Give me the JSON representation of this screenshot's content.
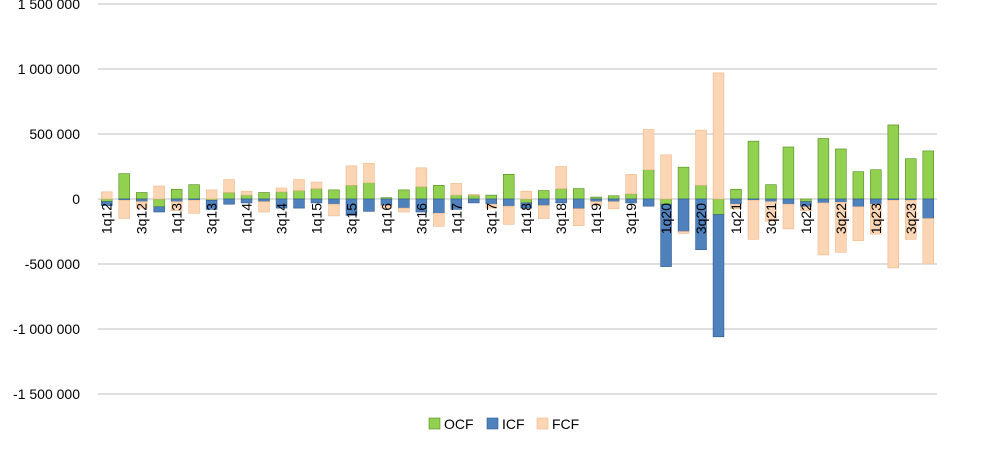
{
  "chart_data": {
    "type": "bar",
    "stacked": true,
    "title": "",
    "xlabel": "",
    "ylabel": "",
    "ylim": [
      -1500000,
      1500000
    ],
    "yticks": [
      1500000,
      1000000,
      500000,
      0,
      -500000,
      -1000000,
      -1500000
    ],
    "ytick_labels": [
      "1 500 000",
      "1 000 000",
      "500 000",
      "0",
      "-500 000",
      "-1 000 000",
      "-1 500 000"
    ],
    "grid": true,
    "legend_position": "bottom",
    "categories": [
      "1q12",
      "2q12",
      "3q12",
      "4q12",
      "1q13",
      "2q13",
      "3q13",
      "4q13",
      "1q14",
      "2q14",
      "3q14",
      "4q14",
      "1q15",
      "2q15",
      "3q15",
      "4q15",
      "1q16",
      "2q16",
      "3q16",
      "4q16",
      "1q17",
      "2q17",
      "3q17",
      "4q17",
      "1q18",
      "2q18",
      "3q18",
      "4q18",
      "1q19",
      "2q19",
      "3q19",
      "4q19",
      "1q20",
      "2q20",
      "3q20",
      "4q20",
      "1q21",
      "2q21",
      "3q21",
      "4q21",
      "1q22",
      "2q22",
      "3q22",
      "4q22",
      "1q23",
      "2q23",
      "3q23",
      "4q23"
    ],
    "tick_labels_shown": [
      "1q12",
      "",
      "3q12",
      "",
      "1q13",
      "",
      "3q13",
      "",
      "1q14",
      "",
      "3q14",
      "",
      "1q15",
      "",
      "3q15",
      "",
      "1q16",
      "",
      "3q16",
      "",
      "1q17",
      "",
      "3q17",
      "",
      "1q18",
      "",
      "3q18",
      "",
      "1q19",
      "",
      "3q19",
      "",
      "1q20",
      "",
      "3q20",
      "",
      "1q21",
      "",
      "3q21",
      "",
      "1q22",
      "",
      "3q22",
      "",
      "1q23",
      "",
      "3q23",
      ""
    ],
    "series": [
      {
        "name": "OCF",
        "color": "#92d050",
        "stroke": "#4e8a1e",
        "values": [
          -20000,
          195000,
          50000,
          -60000,
          75000,
          110000,
          -10000,
          50000,
          30000,
          50000,
          55000,
          65000,
          80000,
          70000,
          105000,
          125000,
          10000,
          70000,
          95000,
          105000,
          30000,
          30000,
          30000,
          190000,
          -30000,
          65000,
          80000,
          80000,
          15000,
          25000,
          40000,
          225000,
          -40000,
          245000,
          105000,
          -120000,
          75000,
          445000,
          110000,
          400000,
          -20000,
          465000,
          385000,
          210000,
          225000,
          570000,
          310000,
          370000
        ]
      },
      {
        "name": "ICF",
        "color": "#4f81bd",
        "stroke": "#2f5a8e",
        "values": [
          -30000,
          -10000,
          -20000,
          -40000,
          -20000,
          -10000,
          -70000,
          -40000,
          -30000,
          -20000,
          -70000,
          -70000,
          -30000,
          -40000,
          -125000,
          -95000,
          -50000,
          -70000,
          -100000,
          -110000,
          -80000,
          -30000,
          -40000,
          -55000,
          -40000,
          -50000,
          -30000,
          -75000,
          -20000,
          -20000,
          -30000,
          -55000,
          -480000,
          -250000,
          -390000,
          -940000,
          -40000,
          -10000,
          -20000,
          -40000,
          -40000,
          -30000,
          -25000,
          -60000,
          -40000,
          -10000,
          -10000,
          -150000
        ]
      },
      {
        "name": "FCF",
        "color": "#fcd5b4",
        "stroke": "#f2b98a",
        "values": [
          55000,
          -140000,
          -50000,
          100000,
          -70000,
          -100000,
          70000,
          100000,
          30000,
          -80000,
          30000,
          85000,
          50000,
          -90000,
          150000,
          150000,
          -20000,
          -30000,
          145000,
          -100000,
          90000,
          5000,
          -30000,
          -140000,
          60000,
          -100000,
          170000,
          -130000,
          -30000,
          -55000,
          150000,
          310000,
          340000,
          -15000,
          425000,
          970000,
          -35000,
          -300000,
          -150000,
          -190000,
          -30000,
          -400000,
          -385000,
          -260000,
          -230000,
          -520000,
          -300000,
          -350000
        ]
      }
    ]
  }
}
